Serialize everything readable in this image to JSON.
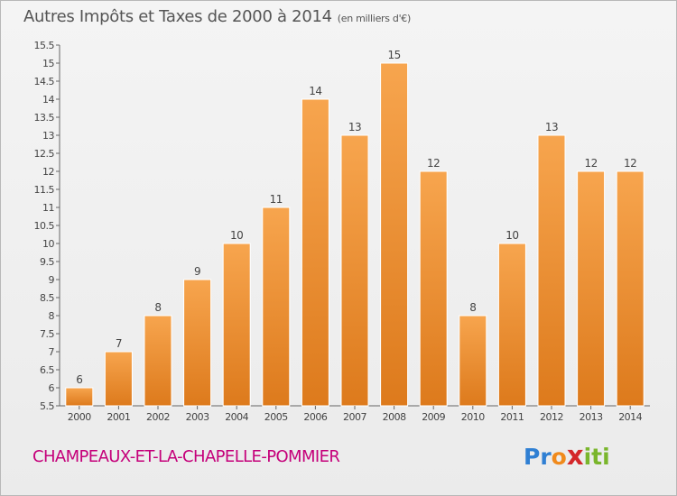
{
  "title": "Autres Impôts et Taxes de 2000 à 2014",
  "unit": "(en milliers d'€)",
  "commune": "CHAMPEAUX-ET-LA-CHAPELLE-POMMIER",
  "logo": {
    "letters": [
      "P",
      "r",
      "o",
      "x",
      "i",
      "t",
      "i"
    ],
    "colors": [
      "#2f7fd3",
      "#2f7fd3",
      "#f08a1c",
      "#d4272a",
      "#7ab62c",
      "#7ab62c",
      "#7ab62c"
    ]
  },
  "colors": {
    "bar_light": "#f7a54e",
    "bar_dark": "#dd7a1c",
    "axis": "#666666",
    "label": "#444444",
    "commune": "#c5007a"
  },
  "chart_data": {
    "type": "bar",
    "title": "Autres Impôts et Taxes de 2000 à 2014",
    "categories": [
      "2000",
      "2001",
      "2002",
      "2003",
      "2004",
      "2005",
      "2006",
      "2007",
      "2008",
      "2009",
      "2010",
      "2011",
      "2012",
      "2013",
      "2014"
    ],
    "values": [
      6,
      7,
      8,
      9,
      10,
      11,
      14,
      13,
      15,
      12,
      8,
      10,
      13,
      12,
      12
    ],
    "data_labels": [
      "6",
      "7",
      "8",
      "9",
      "10",
      "11",
      "14",
      "13",
      "15",
      "12",
      "8",
      "10",
      "13",
      "12",
      "12"
    ],
    "ylim": [
      5.5,
      15.5
    ],
    "yticks": [
      "5.5",
      "6",
      "6.5",
      "7",
      "7.5",
      "8",
      "8.5",
      "9",
      "9.5",
      "10",
      "10.5",
      "11",
      "11.5",
      "12",
      "12.5",
      "13",
      "13.5",
      "14",
      "14.5",
      "15",
      "15.5"
    ],
    "grid": false
  }
}
